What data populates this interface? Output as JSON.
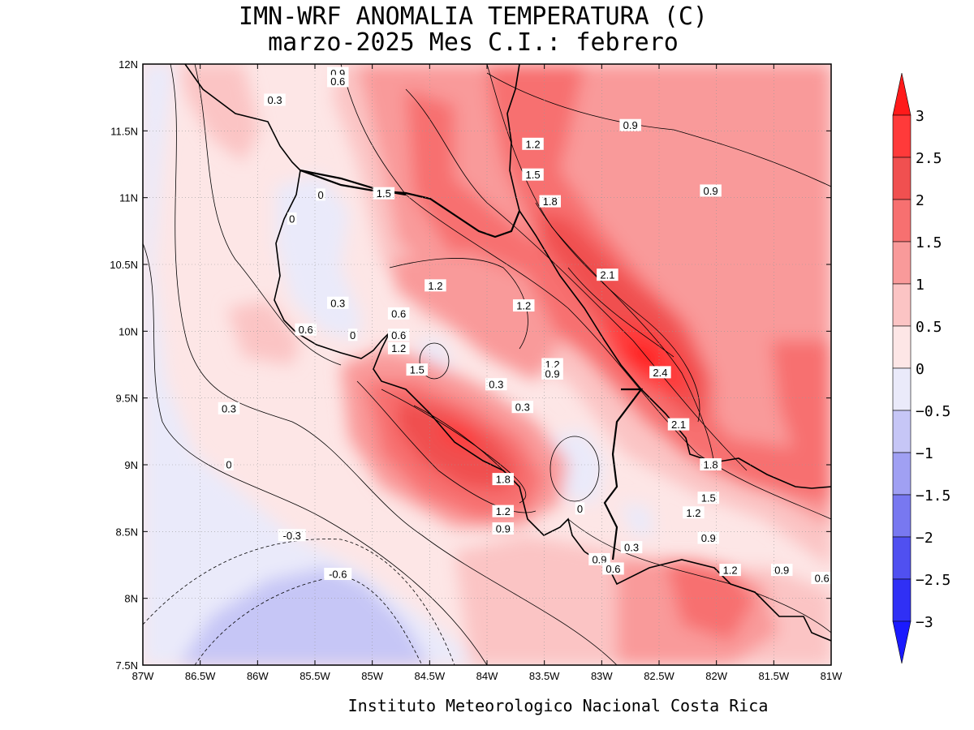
{
  "header": {
    "title_line1": "IMN-WRF  ANOMALIA TEMPERATURA (C)",
    "title_line2": "marzo-2025 Mes C.I.: febrero"
  },
  "footer": {
    "credit": "Instituto Meteorologico Nacional Costa Rica"
  },
  "map": {
    "lon_range": [
      -87,
      -81
    ],
    "lat_range": [
      7.5,
      12
    ],
    "x_ticks": [
      {
        "lon": -87,
        "label": "87W"
      },
      {
        "lon": -86.5,
        "label": "86.5W"
      },
      {
        "lon": -86,
        "label": "86W"
      },
      {
        "lon": -85.5,
        "label": "85.5W"
      },
      {
        "lon": -85,
        "label": "85W"
      },
      {
        "lon": -84.5,
        "label": "84.5W"
      },
      {
        "lon": -84,
        "label": "84W"
      },
      {
        "lon": -83.5,
        "label": "83.5W"
      },
      {
        "lon": -83,
        "label": "83W"
      },
      {
        "lon": -82.5,
        "label": "82.5W"
      },
      {
        "lon": -82,
        "label": "82W"
      },
      {
        "lon": -81.5,
        "label": "81.5W"
      },
      {
        "lon": -81,
        "label": "81W"
      }
    ],
    "y_ticks": [
      {
        "lat": 12,
        "label": "12N"
      },
      {
        "lat": 11.5,
        "label": "11.5N"
      },
      {
        "lat": 11,
        "label": "11N"
      },
      {
        "lat": 10.5,
        "label": "10.5N"
      },
      {
        "lat": 10,
        "label": "10N"
      },
      {
        "lat": 9.5,
        "label": "9.5N"
      },
      {
        "lat": 9,
        "label": "9N"
      },
      {
        "lat": 8.5,
        "label": "8.5N"
      },
      {
        "lat": 8,
        "label": "8N"
      },
      {
        "lat": 7.5,
        "label": "7.5N"
      }
    ],
    "contour_labels": [
      {
        "lon": -85.3,
        "lat": 11.93,
        "text": "0.9"
      },
      {
        "lon": -85.3,
        "lat": 11.87,
        "text": "0.6"
      },
      {
        "lon": -85.85,
        "lat": 11.73,
        "text": "0.3"
      },
      {
        "lon": -82.75,
        "lat": 11.54,
        "text": "0.9"
      },
      {
        "lon": -83.6,
        "lat": 11.4,
        "text": "1.2"
      },
      {
        "lon": -83.6,
        "lat": 11.17,
        "text": "1.5"
      },
      {
        "lon": -84.9,
        "lat": 11.03,
        "text": "1.5"
      },
      {
        "lon": -83.45,
        "lat": 10.97,
        "text": "1.8"
      },
      {
        "lon": -82.05,
        "lat": 11.05,
        "text": "0.9"
      },
      {
        "lon": -85.45,
        "lat": 11.02,
        "text": "0"
      },
      {
        "lon": -85.7,
        "lat": 10.84,
        "text": "0"
      },
      {
        "lon": -84.45,
        "lat": 10.34,
        "text": "1.2"
      },
      {
        "lon": -82.95,
        "lat": 10.42,
        "text": "2.1"
      },
      {
        "lon": -83.68,
        "lat": 10.19,
        "text": "1.2"
      },
      {
        "lon": -85.3,
        "lat": 10.21,
        "text": "0.3"
      },
      {
        "lon": -84.77,
        "lat": 10.13,
        "text": "0.6"
      },
      {
        "lon": -85.58,
        "lat": 10.01,
        "text": "0.6"
      },
      {
        "lon": -85.17,
        "lat": 9.97,
        "text": "0"
      },
      {
        "lon": -84.77,
        "lat": 9.97,
        "text": "0.6"
      },
      {
        "lon": -84.77,
        "lat": 9.87,
        "text": "1.2"
      },
      {
        "lon": -83.43,
        "lat": 9.75,
        "text": "1.2"
      },
      {
        "lon": -83.43,
        "lat": 9.68,
        "text": "0.9"
      },
      {
        "lon": -84.61,
        "lat": 9.71,
        "text": "1.5"
      },
      {
        "lon": -82.49,
        "lat": 9.69,
        "text": "2.4"
      },
      {
        "lon": -83.92,
        "lat": 9.6,
        "text": "0.3"
      },
      {
        "lon": -83.69,
        "lat": 9.43,
        "text": "0.3"
      },
      {
        "lon": -86.25,
        "lat": 9.42,
        "text": "0.3"
      },
      {
        "lon": -82.33,
        "lat": 9.3,
        "text": "2.1"
      },
      {
        "lon": -86.25,
        "lat": 9.0,
        "text": "0"
      },
      {
        "lon": -82.05,
        "lat": 9.0,
        "text": "1.8"
      },
      {
        "lon": -83.86,
        "lat": 8.89,
        "text": "1.8"
      },
      {
        "lon": -82.07,
        "lat": 8.75,
        "text": "1.5"
      },
      {
        "lon": -82.2,
        "lat": 8.64,
        "text": "1.2"
      },
      {
        "lon": -83.86,
        "lat": 8.65,
        "text": "1.2"
      },
      {
        "lon": -83.86,
        "lat": 8.52,
        "text": "0.9"
      },
      {
        "lon": -83.19,
        "lat": 8.67,
        "text": "0"
      },
      {
        "lon": -82.07,
        "lat": 8.45,
        "text": "0.9"
      },
      {
        "lon": -85.7,
        "lat": 8.47,
        "text": "-0.3"
      },
      {
        "lon": -82.74,
        "lat": 8.38,
        "text": "0.3"
      },
      {
        "lon": -83.02,
        "lat": 8.29,
        "text": "0.9"
      },
      {
        "lon": -82.9,
        "lat": 8.22,
        "text": "0.6"
      },
      {
        "lon": -81.88,
        "lat": 8.21,
        "text": "1.2"
      },
      {
        "lon": -85.3,
        "lat": 8.18,
        "text": "-0.6"
      },
      {
        "lon": -81.43,
        "lat": 8.21,
        "text": "0.9"
      },
      {
        "lon": -81.08,
        "lat": 8.15,
        "text": "0.6"
      }
    ]
  },
  "colorbar": {
    "levels": [
      "3",
      "2.5",
      "2",
      "1.5",
      "1",
      "0.5",
      "0",
      "−0.5",
      "−1",
      "−1.5",
      "−2",
      "−2.5",
      "−3"
    ],
    "colors": {
      "r6": "#ff1a1a",
      "r5": "#ff3a3a",
      "r4": "#f05050",
      "r3": "#f77070",
      "r2": "#f99a9a",
      "r1": "#fbc4c4",
      "r0": "#fde6e6",
      "b0": "#eaeafa",
      "b1": "#c6c6f6",
      "b2": "#a0a0f3",
      "b3": "#7878f0",
      "b4": "#5050f0",
      "b5": "#3030f5",
      "b6": "#1a1aff"
    }
  }
}
